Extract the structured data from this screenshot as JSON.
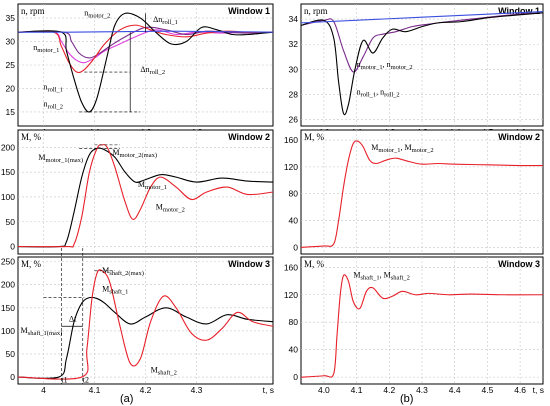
{
  "panel_labels": {
    "a": "(a)",
    "b": "(b)"
  },
  "colors": {
    "black": "#000000",
    "red": "#e8202a",
    "purple": "#7a2c8c",
    "magenta": "#e040e0",
    "blue": "#3a4ee0",
    "dark": "#333333"
  },
  "chart_data": [
    {
      "id": "a1",
      "type": "line",
      "window_title": "Window 1",
      "ylabel": "n, rpm",
      "xlim": [
        3.95,
        4.45
      ],
      "ylim": [
        12,
        38
      ],
      "xticks": [
        4,
        4.1,
        4.2,
        4.3
      ],
      "xticklabels": [
        "4",
        "4.1",
        "4.2",
        "4.3"
      ],
      "yticks": [
        15,
        20,
        25,
        30,
        35
      ],
      "yticklabels": [
        "15",
        "20",
        "25",
        "30",
        "35"
      ],
      "series": [
        {
          "name": "n_motor_1",
          "color": "magenta",
          "x": [
            3.95,
            4.02,
            4.035,
            4.05,
            4.065,
            4.08,
            4.1,
            4.12,
            4.15,
            4.18,
            4.22,
            4.26,
            4.3,
            4.35,
            4.4,
            4.45
          ],
          "y": [
            32,
            32,
            30,
            27.5,
            26,
            25.5,
            26.5,
            28,
            29.5,
            31,
            32.5,
            31.5,
            32,
            31.8,
            32,
            32
          ]
        },
        {
          "name": "n_motor_2",
          "color": "purple",
          "x": [
            3.95,
            4.04,
            4.055,
            4.07,
            4.09,
            4.11,
            4.13,
            4.16,
            4.2,
            4.24,
            4.28,
            4.32,
            4.36,
            4.4,
            4.45
          ],
          "y": [
            32,
            32,
            30,
            27.5,
            26.5,
            27.5,
            29,
            31,
            33,
            32.5,
            31.5,
            32.2,
            32,
            31.8,
            32
          ]
        },
        {
          "name": "n_roll_1",
          "color": "red",
          "x": [
            3.95,
            4.02,
            4.035,
            4.05,
            4.065,
            4.08,
            4.1,
            4.12,
            4.15,
            4.18,
            4.21,
            4.24,
            4.28,
            4.32,
            4.36,
            4.4,
            4.45
          ],
          "y": [
            32,
            32,
            29,
            25.5,
            23.5,
            24,
            26.5,
            29.5,
            32.5,
            33.5,
            32.5,
            31.5,
            31,
            31.8,
            32.2,
            32,
            32
          ]
        },
        {
          "name": "n_roll_2",
          "color": "black",
          "x": [
            3.95,
            4.035,
            4.045,
            4.06,
            4.075,
            4.09,
            4.105,
            4.125,
            4.14,
            4.16,
            4.19,
            4.22,
            4.25,
            4.28,
            4.31,
            4.34,
            4.37,
            4.4,
            4.45
          ],
          "y": [
            32,
            32,
            28,
            22,
            17,
            15,
            18,
            27,
            33.5,
            36,
            35,
            32,
            29.5,
            30,
            33,
            32.5,
            31.5,
            31.5,
            32
          ]
        },
        {
          "name": "n_roll_blue",
          "color": "blue",
          "x": [
            3.95,
            4.05,
            4.15,
            4.25,
            4.35,
            4.45
          ],
          "y": [
            32,
            32,
            32.1,
            32.2,
            32.1,
            32
          ]
        }
      ],
      "labels": [
        {
          "text": "n_motor_2",
          "x": 4.08,
          "y": 35.5
        },
        {
          "text": "Δn_roll_1",
          "x": 4.215,
          "y": 34.2
        },
        {
          "text": "n_motor_1",
          "x": 3.98,
          "y": 28.2
        },
        {
          "text": "n_roll_1",
          "x": 4.0,
          "y": 19.8
        },
        {
          "text": "Δn_roll_2",
          "x": 4.19,
          "y": 23.5
        },
        {
          "text": "n_roll_2",
          "x": 4.0,
          "y": 16.2
        }
      ]
    },
    {
      "id": "a2",
      "type": "line",
      "window_title": "Window 2",
      "ylabel": "M, %",
      "xlim": [
        3.95,
        4.45
      ],
      "ylim": [
        -15,
        235
      ],
      "xticks": [
        4,
        4.1,
        4.2,
        4.3
      ],
      "xticklabels": [
        "4",
        "4.1",
        "4.2",
        "4.3"
      ],
      "yticks": [
        0,
        50,
        100,
        150,
        200
      ],
      "yticklabels": [
        "0",
        "50",
        "100",
        "150",
        "200"
      ],
      "series": [
        {
          "name": "M_motor_1",
          "color": "black",
          "x": [
            3.95,
            4.03,
            4.045,
            4.06,
            4.075,
            4.09,
            4.105,
            4.12,
            4.14,
            4.16,
            4.18,
            4.2,
            4.23,
            4.26,
            4.3,
            4.35,
            4.4,
            4.45
          ],
          "y": [
            0,
            0,
            10,
            70,
            140,
            185,
            198,
            195,
            180,
            150,
            130,
            135,
            145,
            140,
            130,
            138,
            132,
            130
          ]
        },
        {
          "name": "M_motor_2",
          "color": "red",
          "x": [
            3.95,
            4.045,
            4.06,
            4.075,
            4.09,
            4.105,
            4.115,
            4.125,
            4.14,
            4.16,
            4.175,
            4.19,
            4.21,
            4.23,
            4.26,
            4.29,
            4.32,
            4.36,
            4.4,
            4.45
          ],
          "y": [
            0,
            0,
            5,
            60,
            150,
            198,
            205,
            200,
            160,
            90,
            55,
            75,
            120,
            140,
            120,
            95,
            110,
            120,
            105,
            110
          ]
        }
      ],
      "labels": [
        {
          "text": "M_motor_1(max)",
          "x": 3.99,
          "y": 175
        },
        {
          "text": "M_motor_2(max)",
          "x": 4.135,
          "y": 185
        },
        {
          "text": "M_motor_1",
          "x": 4.185,
          "y": 120
        },
        {
          "text": "M_motor_2",
          "x": 4.22,
          "y": 75
        }
      ]
    },
    {
      "id": "a3",
      "type": "line",
      "window_title": "Window 3",
      "ylabel": "M, %",
      "xlim": [
        3.95,
        4.45
      ],
      "ylim": [
        -15,
        260
      ],
      "xticks": [
        4,
        4.1,
        4.2,
        4.3
      ],
      "xticklabels": [
        "4",
        "4.1",
        "4.2",
        "4.3"
      ],
      "xlabel": "t, s",
      "yticks": [
        0,
        50,
        100,
        150,
        200,
        250
      ],
      "yticklabels": [
        "0",
        "50",
        "100",
        "150",
        "200",
        "250"
      ],
      "series": [
        {
          "name": "M_shaft_1",
          "color": "black",
          "x": [
            3.95,
            4.03,
            4.045,
            4.06,
            4.075,
            4.09,
            4.105,
            4.12,
            4.14,
            4.17,
            4.2,
            4.24,
            4.28,
            4.32,
            4.36,
            4.4,
            4.45
          ],
          "y": [
            0,
            0,
            40,
            120,
            160,
            172,
            170,
            160,
            140,
            115,
            130,
            150,
            130,
            115,
            135,
            125,
            120
          ]
        },
        {
          "name": "M_shaft_2",
          "color": "red",
          "x": [
            3.95,
            4.075,
            4.085,
            4.095,
            4.105,
            4.115,
            4.13,
            4.15,
            4.17,
            4.19,
            4.21,
            4.235,
            4.26,
            4.29,
            4.32,
            4.35,
            4.38,
            4.41,
            4.45
          ],
          "y": [
            0,
            0,
            60,
            170,
            225,
            230,
            205,
            110,
            30,
            40,
            120,
            175,
            150,
            95,
            80,
            105,
            140,
            120,
            110
          ]
        }
      ],
      "labels": [
        {
          "text": "M_shaft_2(max)",
          "x": 4.115,
          "y": 225
        },
        {
          "text": "M_shaft_1",
          "x": 4.115,
          "y": 185
        },
        {
          "text": "M_shaft_1(max)",
          "x": 3.955,
          "y": 95
        },
        {
          "text": "Δt",
          "x": 4.05,
          "y": 120
        },
        {
          "text": "M_shaft_2",
          "x": 4.21,
          "y": 10
        },
        {
          "text": "t1",
          "x": 4.035,
          "y": -12
        },
        {
          "text": "t2",
          "x": 4.077,
          "y": -12
        }
      ]
    },
    {
      "id": "b1",
      "type": "line",
      "window_title": "Window 1",
      "ylabel": "n, rpm",
      "xlim": [
        3.93,
        4.67
      ],
      "ylim": [
        25.5,
        35.2
      ],
      "xticks": [
        4,
        4.1,
        4.2,
        4.3,
        4.4,
        4.5,
        4.6
      ],
      "xticklabels": [
        "4.0",
        "4.1",
        "4.2",
        "4.3",
        "4.4",
        "4.5",
        "4.6"
      ],
      "yticks": [
        26,
        28,
        30,
        32,
        34
      ],
      "yticklabels": [
        "26",
        "28",
        "30",
        "32",
        "34"
      ],
      "series": [
        {
          "name": "n_motor_1, n_motor_2",
          "color": "purple",
          "x": [
            3.93,
            4.0,
            4.03,
            4.06,
            4.09,
            4.12,
            4.15,
            4.18,
            4.22,
            4.27,
            4.32,
            4.38,
            4.45,
            4.52,
            4.6,
            4.67
          ],
          "y": [
            33.5,
            33.9,
            33.8,
            31.5,
            29.8,
            31,
            32.5,
            32.8,
            33,
            33.4,
            33.6,
            33.8,
            34,
            34.2,
            34.4,
            34.5
          ]
        },
        {
          "name": "n_roll_1, n_roll_2",
          "color": "black",
          "x": [
            3.93,
            4.0,
            4.03,
            4.045,
            4.06,
            4.075,
            4.095,
            4.12,
            4.15,
            4.18,
            4.21,
            4.25,
            4.3,
            4.35,
            4.42,
            4.5,
            4.58,
            4.67
          ],
          "y": [
            33.5,
            33.9,
            32.5,
            29,
            26.5,
            27.2,
            30,
            32.3,
            31.3,
            32.5,
            33.2,
            33,
            33.4,
            33.7,
            33.8,
            34.1,
            34.3,
            34.5
          ]
        },
        {
          "name": "reference",
          "color": "blue",
          "x": [
            3.93,
            4.67
          ],
          "y": [
            33.7,
            34.6
          ]
        }
      ],
      "labels": [
        {
          "text": "n_motor_1, n_motor_2",
          "x": 4.1,
          "y": 30.2
        },
        {
          "text": "n_roll_1, n_roll_2",
          "x": 4.1,
          "y": 28.0
        }
      ]
    },
    {
      "id": "b2",
      "type": "line",
      "window_title": "Window 2",
      "ylabel": "M, %",
      "xlim": [
        3.93,
        4.67
      ],
      "ylim": [
        -10,
        175
      ],
      "xticks": [
        4,
        4.1,
        4.2,
        4.3,
        4.4,
        4.5,
        4.6
      ],
      "xticklabels": [
        "4.0",
        "4.1",
        "4.2",
        "4.3",
        "4.4",
        "4.5",
        "4.6"
      ],
      "yticks": [
        0,
        40,
        80,
        120,
        160
      ],
      "yticklabels": [
        "0",
        "40",
        "80",
        "120",
        "160"
      ],
      "series": [
        {
          "name": "M_motor_1, M_motor_2",
          "color": "red",
          "x": [
            3.93,
            4.0,
            4.03,
            4.045,
            4.06,
            4.075,
            4.09,
            4.105,
            4.12,
            4.14,
            4.16,
            4.19,
            4.22,
            4.26,
            4.3,
            4.35,
            4.4,
            4.5,
            4.6,
            4.67
          ],
          "y": [
            0,
            2,
            5,
            40,
            90,
            130,
            155,
            158,
            150,
            130,
            125,
            130,
            133,
            128,
            124,
            125,
            124,
            123,
            122,
            122
          ]
        }
      ],
      "labels": [
        {
          "text": "M_motor_1, M_motor_2",
          "x": 4.145,
          "y": 145
        }
      ]
    },
    {
      "id": "b3",
      "type": "line",
      "window_title": "Window 3",
      "ylabel": "M, %",
      "xlim": [
        3.93,
        4.67
      ],
      "ylim": [
        -10,
        175
      ],
      "xticks": [
        4,
        4.1,
        4.2,
        4.3,
        4.4,
        4.5,
        4.6
      ],
      "xticklabels": [
        "4.0",
        "4.1",
        "4.2",
        "4.3",
        "4.4",
        "4.5",
        "4.6"
      ],
      "xlabel": "t, s",
      "yticks": [
        0,
        40,
        80,
        120,
        160
      ],
      "yticklabels": [
        "0",
        "40",
        "80",
        "120",
        "160"
      ],
      "series": [
        {
          "name": "M_shaft_1, M_shaft_2",
          "color": "red",
          "x": [
            3.93,
            4.0,
            4.03,
            4.04,
            4.05,
            4.06,
            4.075,
            4.09,
            4.11,
            4.13,
            4.15,
            4.18,
            4.21,
            4.24,
            4.28,
            4.32,
            4.38,
            4.45,
            4.55,
            4.67
          ],
          "y": [
            0,
            2,
            5,
            60,
            120,
            148,
            140,
            110,
            100,
            125,
            130,
            115,
            118,
            125,
            120,
            122,
            120,
            121,
            120,
            120
          ]
        }
      ],
      "labels": [
        {
          "text": "M_shaft_1, M_shaft_2",
          "x": 4.09,
          "y": 145
        }
      ]
    }
  ]
}
